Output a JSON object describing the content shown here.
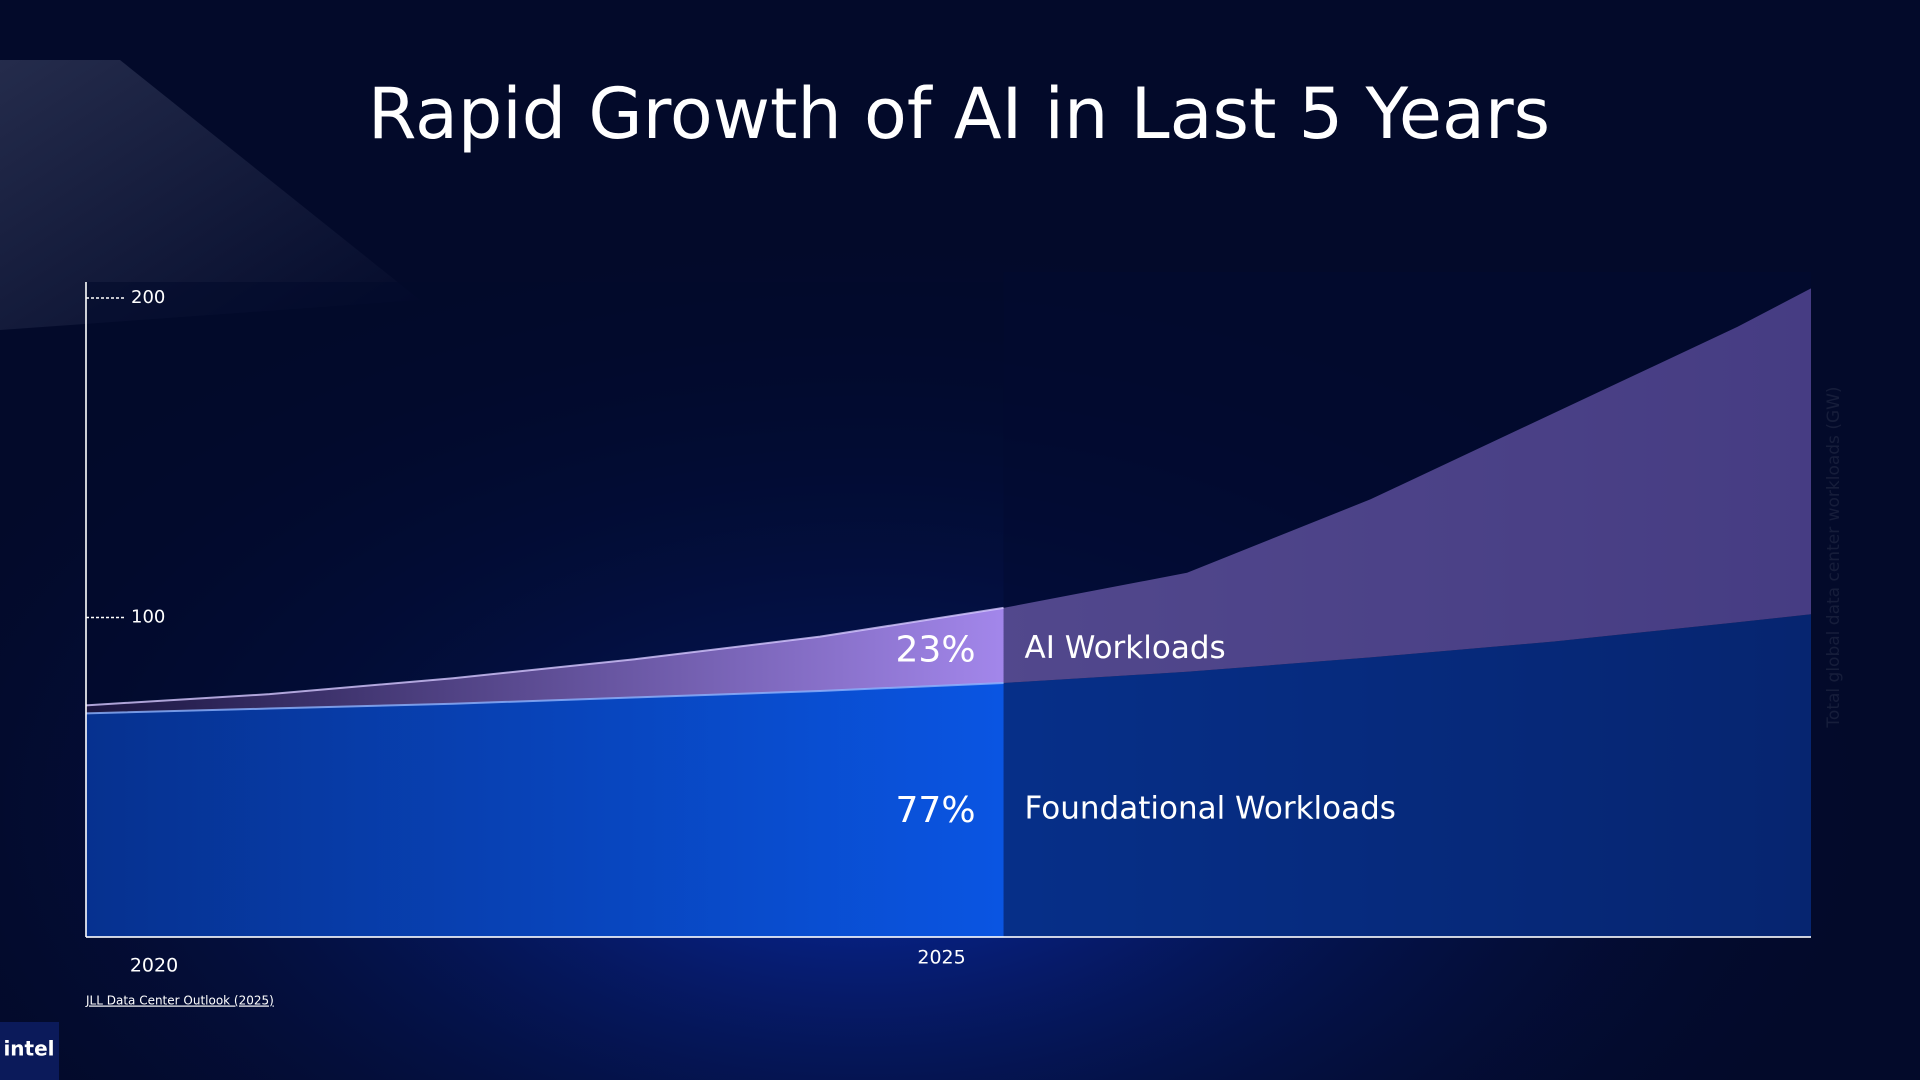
{
  "chart_data": {
    "type": "area",
    "title": "Rapid Growth of AI in Last 5 Years",
    "y_label": "Total global data center workloads (GW)",
    "source": "JLL Data Center Outlook (2025)",
    "logo": "intel",
    "x": [
      2020,
      2021,
      2022,
      2023,
      2024,
      2025,
      2026,
      2027,
      2028,
      2029,
      2029.4
    ],
    "xlim": [
      2020,
      2029.4
    ],
    "xticks": [
      2020,
      2025
    ],
    "ylim": [
      0,
      205
    ],
    "yticks": [
      100,
      200
    ],
    "stacked": true,
    "series": [
      {
        "name": "Foundational Workloads",
        "color": "#0a52dc",
        "share_label": "77%",
        "values": [
          70,
          71.5,
          73,
          75,
          77,
          79.5,
          83,
          87.5,
          92.5,
          98.5,
          101
        ]
      },
      {
        "name": "AI Workloads",
        "color": "#9b80e3",
        "share_label": "23%",
        "values": [
          2.5,
          4.5,
          8,
          12,
          17,
          23.5,
          31,
          49.5,
          71.5,
          92.5,
          102
        ]
      }
    ]
  }
}
